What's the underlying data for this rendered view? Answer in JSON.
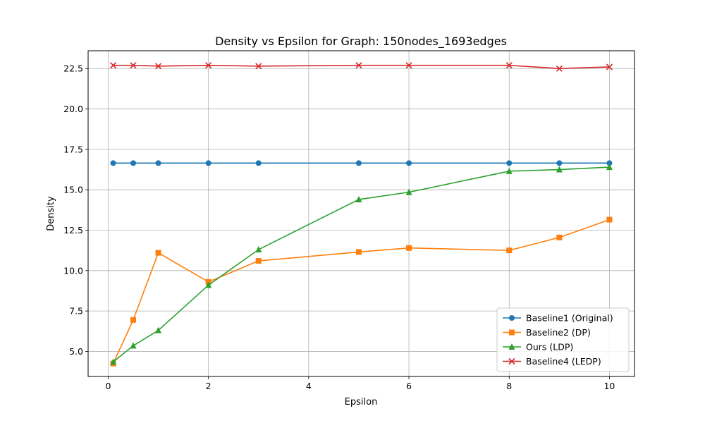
{
  "chart_data": {
    "type": "line",
    "title": "Density vs Epsilon for Graph: 150nodes_1693edges",
    "xlabel": "Epsilon",
    "ylabel": "Density",
    "xlim": [
      -0.4,
      10.5
    ],
    "ylim": [
      3.45,
      23.6
    ],
    "xticks": [
      0,
      2,
      4,
      6,
      8,
      10
    ],
    "yticks": [
      5.0,
      7.5,
      10.0,
      12.5,
      15.0,
      17.5,
      20.0,
      22.5
    ],
    "ytick_labels": [
      "5.0",
      "7.5",
      "10.0",
      "12.5",
      "15.0",
      "17.5",
      "20.0",
      "22.5"
    ],
    "grid": true,
    "legend_position": "lower-right",
    "x": [
      0.1,
      0.5,
      1,
      2,
      3,
      5,
      6,
      8,
      9,
      10
    ],
    "series": [
      {
        "name": "Baseline1 (Original)",
        "color": "#1f77b4",
        "marker": "circle",
        "values": [
          16.65,
          16.65,
          16.65,
          16.65,
          16.65,
          16.65,
          16.65,
          16.65,
          16.65,
          16.65
        ]
      },
      {
        "name": "Baseline2 (DP)",
        "color": "#ff7f0e",
        "marker": "square",
        "values": [
          4.25,
          6.95,
          11.1,
          9.3,
          10.6,
          11.15,
          11.4,
          11.25,
          12.05,
          13.15
        ]
      },
      {
        "name": "Ours (LDP)",
        "color": "#2ca02c",
        "marker": "triangle",
        "values": [
          4.35,
          5.35,
          6.3,
          9.1,
          11.3,
          14.4,
          14.85,
          16.15,
          16.25,
          16.4
        ]
      },
      {
        "name": "Baseline4 (LEDP)",
        "color": "#d62728",
        "marker": "x",
        "values": [
          22.7,
          22.7,
          22.65,
          22.7,
          22.65,
          22.7,
          22.7,
          22.7,
          22.5,
          22.6
        ]
      }
    ]
  }
}
